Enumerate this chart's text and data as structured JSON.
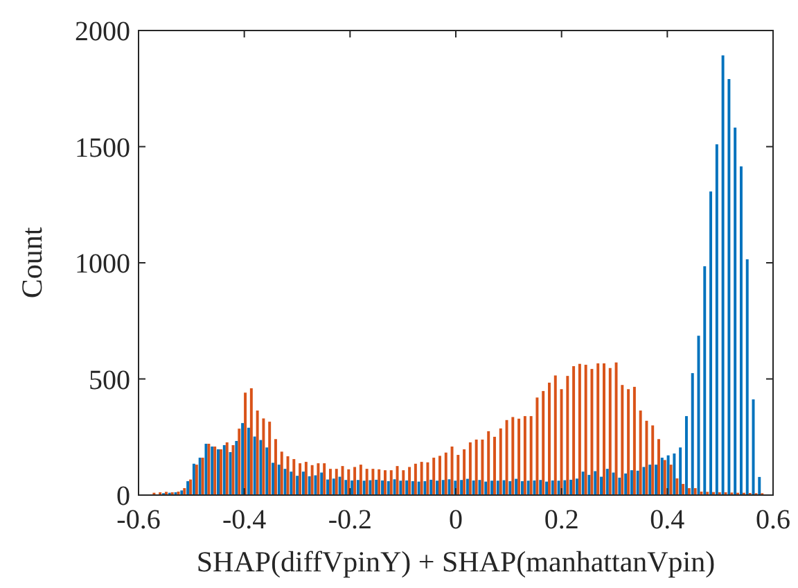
{
  "chart_data": {
    "type": "histogram",
    "xlabel": "SHAP(diffVpinY) + SHAP(manhattanVpin)",
    "ylabel": "Count",
    "bins": [
      -0.5905,
      -0.579,
      -0.5675,
      -0.556,
      -0.5445,
      -0.533,
      -0.5215,
      -0.51,
      -0.4985,
      -0.487,
      -0.4755,
      -0.464,
      -0.4525,
      -0.441,
      -0.4295,
      -0.418,
      -0.4065,
      -0.395,
      -0.3835,
      -0.372,
      -0.3605,
      -0.349,
      -0.3375,
      -0.326,
      -0.3145,
      -0.303,
      -0.2915,
      -0.28,
      -0.2685,
      -0.257,
      -0.2455,
      -0.234,
      -0.2225,
      -0.211,
      -0.1995,
      -0.188,
      -0.1765,
      -0.165,
      -0.1535,
      -0.142,
      -0.1305,
      -0.119,
      -0.1075,
      -0.096,
      -0.0845,
      -0.073,
      -0.0615,
      -0.05,
      -0.0385,
      -0.027,
      -0.0155,
      -0.004,
      0.0075,
      0.019,
      0.0305,
      0.042,
      0.0535,
      0.065,
      0.0765,
      0.088,
      0.0995,
      0.111,
      0.1225,
      0.134,
      0.1455,
      0.157,
      0.1685,
      0.18,
      0.1915,
      0.203,
      0.2145,
      0.226,
      0.2375,
      0.249,
      0.2605,
      0.272,
      0.2835,
      0.295,
      0.3065,
      0.318,
      0.3295,
      0.341,
      0.3525,
      0.364,
      0.3755,
      0.387,
      0.3985,
      0.41,
      0.4215,
      0.433,
      0.4445,
      0.456,
      0.4675,
      0.479,
      0.4905,
      0.502,
      0.5135,
      0.525,
      0.5365,
      0.548,
      0.5595,
      0.571,
      0.5825
    ],
    "series": [
      {
        "color": "#0072bd",
        "values": [
          0,
          0,
          0,
          8,
          10,
          12,
          20,
          60,
          135,
          161,
          221,
          209,
          197,
          215,
          185,
          233,
          310,
          290,
          252,
          237,
          205,
          139,
          131,
          113,
          101,
          83,
          101,
          81,
          85,
          97,
          67,
          71,
          79,
          65,
          63,
          65,
          62,
          64,
          66,
          63,
          60,
          68,
          62,
          63,
          60,
          58,
          60,
          66,
          62,
          65,
          68,
          62,
          65,
          70,
          63,
          65,
          58,
          62,
          62,
          64,
          60,
          70,
          60,
          62,
          63,
          65,
          58,
          63,
          62,
          64,
          66,
          71,
          101,
          87,
          103,
          79,
          113,
          97,
          75,
          93,
          107,
          105,
          121,
          131,
          131,
          161,
          171,
          179,
          205,
          340,
          525,
          686,
          985,
          1307,
          1510,
          1893,
          1791,
          1582,
          1415,
          1015,
          412,
          78
        ]
      },
      {
        "color": "#d95319",
        "values": [
          0,
          10,
          12,
          14,
          12,
          15,
          30,
          67,
          131,
          161,
          221,
          209,
          197,
          227,
          215,
          286,
          441,
          460,
          364,
          330,
          316,
          241,
          187,
          167,
          155,
          137,
          143,
          129,
          137,
          137,
          113,
          113,
          125,
          111,
          121,
          131,
          113,
          113,
          111,
          107,
          107,
          125,
          107,
          121,
          135,
          143,
          141,
          161,
          169,
          183,
          209,
          173,
          197,
          227,
          239,
          239,
          275,
          251,
          287,
          323,
          336,
          329,
          340,
          340,
          420,
          448,
          484,
          515,
          456,
          513,
          555,
          565,
          561,
          543,
          567,
          567,
          547,
          571,
          474,
          456,
          466,
          364,
          320,
          300,
          241,
          151,
          131,
          72,
          48,
          30,
          30,
          15,
          14,
          13,
          12,
          12,
          11,
          10,
          10,
          9,
          8,
          8
        ]
      }
    ],
    "xlim": [
      -0.6,
      0.6
    ],
    "ylim": [
      0,
      2000
    ],
    "xticks": [
      -0.6,
      -0.4,
      -0.2,
      0,
      0.2,
      0.4,
      0.6
    ],
    "yticks": [
      0,
      500,
      1000,
      1500,
      2000
    ]
  }
}
